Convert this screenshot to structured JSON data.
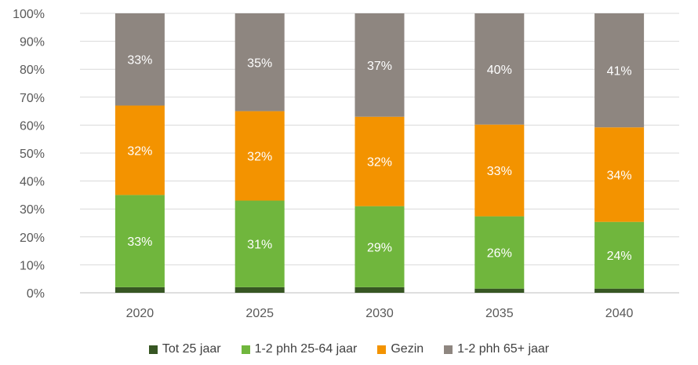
{
  "chart_data": {
    "type": "bar",
    "stacked": true,
    "percent": true,
    "categories": [
      "2020",
      "2025",
      "2030",
      "2035",
      "2040"
    ],
    "series": [
      {
        "name": "Tot 25 jaar",
        "color": "#375623",
        "values": [
          2,
          2,
          2,
          1.5,
          1.5
        ],
        "labels": [
          "",
          "",
          "",
          "",
          ""
        ]
      },
      {
        "name": "1-2 phh 25-64 jaar",
        "color": "#70b63d",
        "values": [
          33,
          31,
          29,
          26,
          24
        ],
        "labels": [
          "33%",
          "31%",
          "29%",
          "26%",
          "24%"
        ]
      },
      {
        "name": "Gezin",
        "color": "#f39300",
        "values": [
          32,
          32,
          32,
          33,
          34
        ],
        "labels": [
          "32%",
          "32%",
          "32%",
          "33%",
          "34%"
        ]
      },
      {
        "name": "1-2 phh 65+ jaar",
        "color": "#8e8680",
        "values": [
          33,
          35,
          37,
          40,
          41
        ],
        "labels": [
          "33%",
          "35%",
          "37%",
          "40%",
          "41%"
        ]
      }
    ],
    "ylim": [
      0,
      100
    ],
    "yticks": [
      "0%",
      "10%",
      "20%",
      "30%",
      "40%",
      "50%",
      "60%",
      "70%",
      "80%",
      "90%",
      "100%"
    ],
    "grid": true,
    "legend_position": "bottom"
  }
}
